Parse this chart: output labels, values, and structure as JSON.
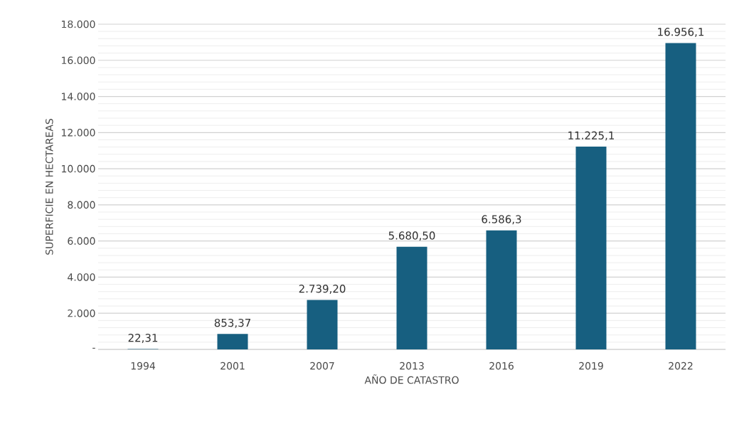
{
  "chart_data": {
    "type": "bar",
    "xlabel": "AÑO DE CATASTRO",
    "ylabel": "SUPERFICIE EN HECTAREAS",
    "categories": [
      "1994",
      "2001",
      "2007",
      "2013",
      "2016",
      "2019",
      "2022"
    ],
    "values": [
      22.31,
      853.37,
      2739.2,
      5680.5,
      6586.3,
      11225.1,
      16956.1
    ],
    "value_labels": [
      "22,31",
      "853,37",
      "2.739,20",
      "5.680,50",
      "6.586,3",
      "11.225,1",
      "16.956,1"
    ],
    "color": "#175f80",
    "ylim": [
      0,
      18000
    ],
    "yticks": [
      {
        "value": 0,
        "label": "-"
      },
      {
        "value": 2000,
        "label": "2.000"
      },
      {
        "value": 4000,
        "label": "4.000"
      },
      {
        "value": 6000,
        "label": "6.000"
      },
      {
        "value": 8000,
        "label": "8.000"
      },
      {
        "value": 10000,
        "label": "10.000"
      },
      {
        "value": 12000,
        "label": "12.000"
      },
      {
        "value": 14000,
        "label": "14.000"
      },
      {
        "value": 16000,
        "label": "16.000"
      },
      {
        "value": 18000,
        "label": "18.000"
      }
    ],
    "grid": "y"
  }
}
